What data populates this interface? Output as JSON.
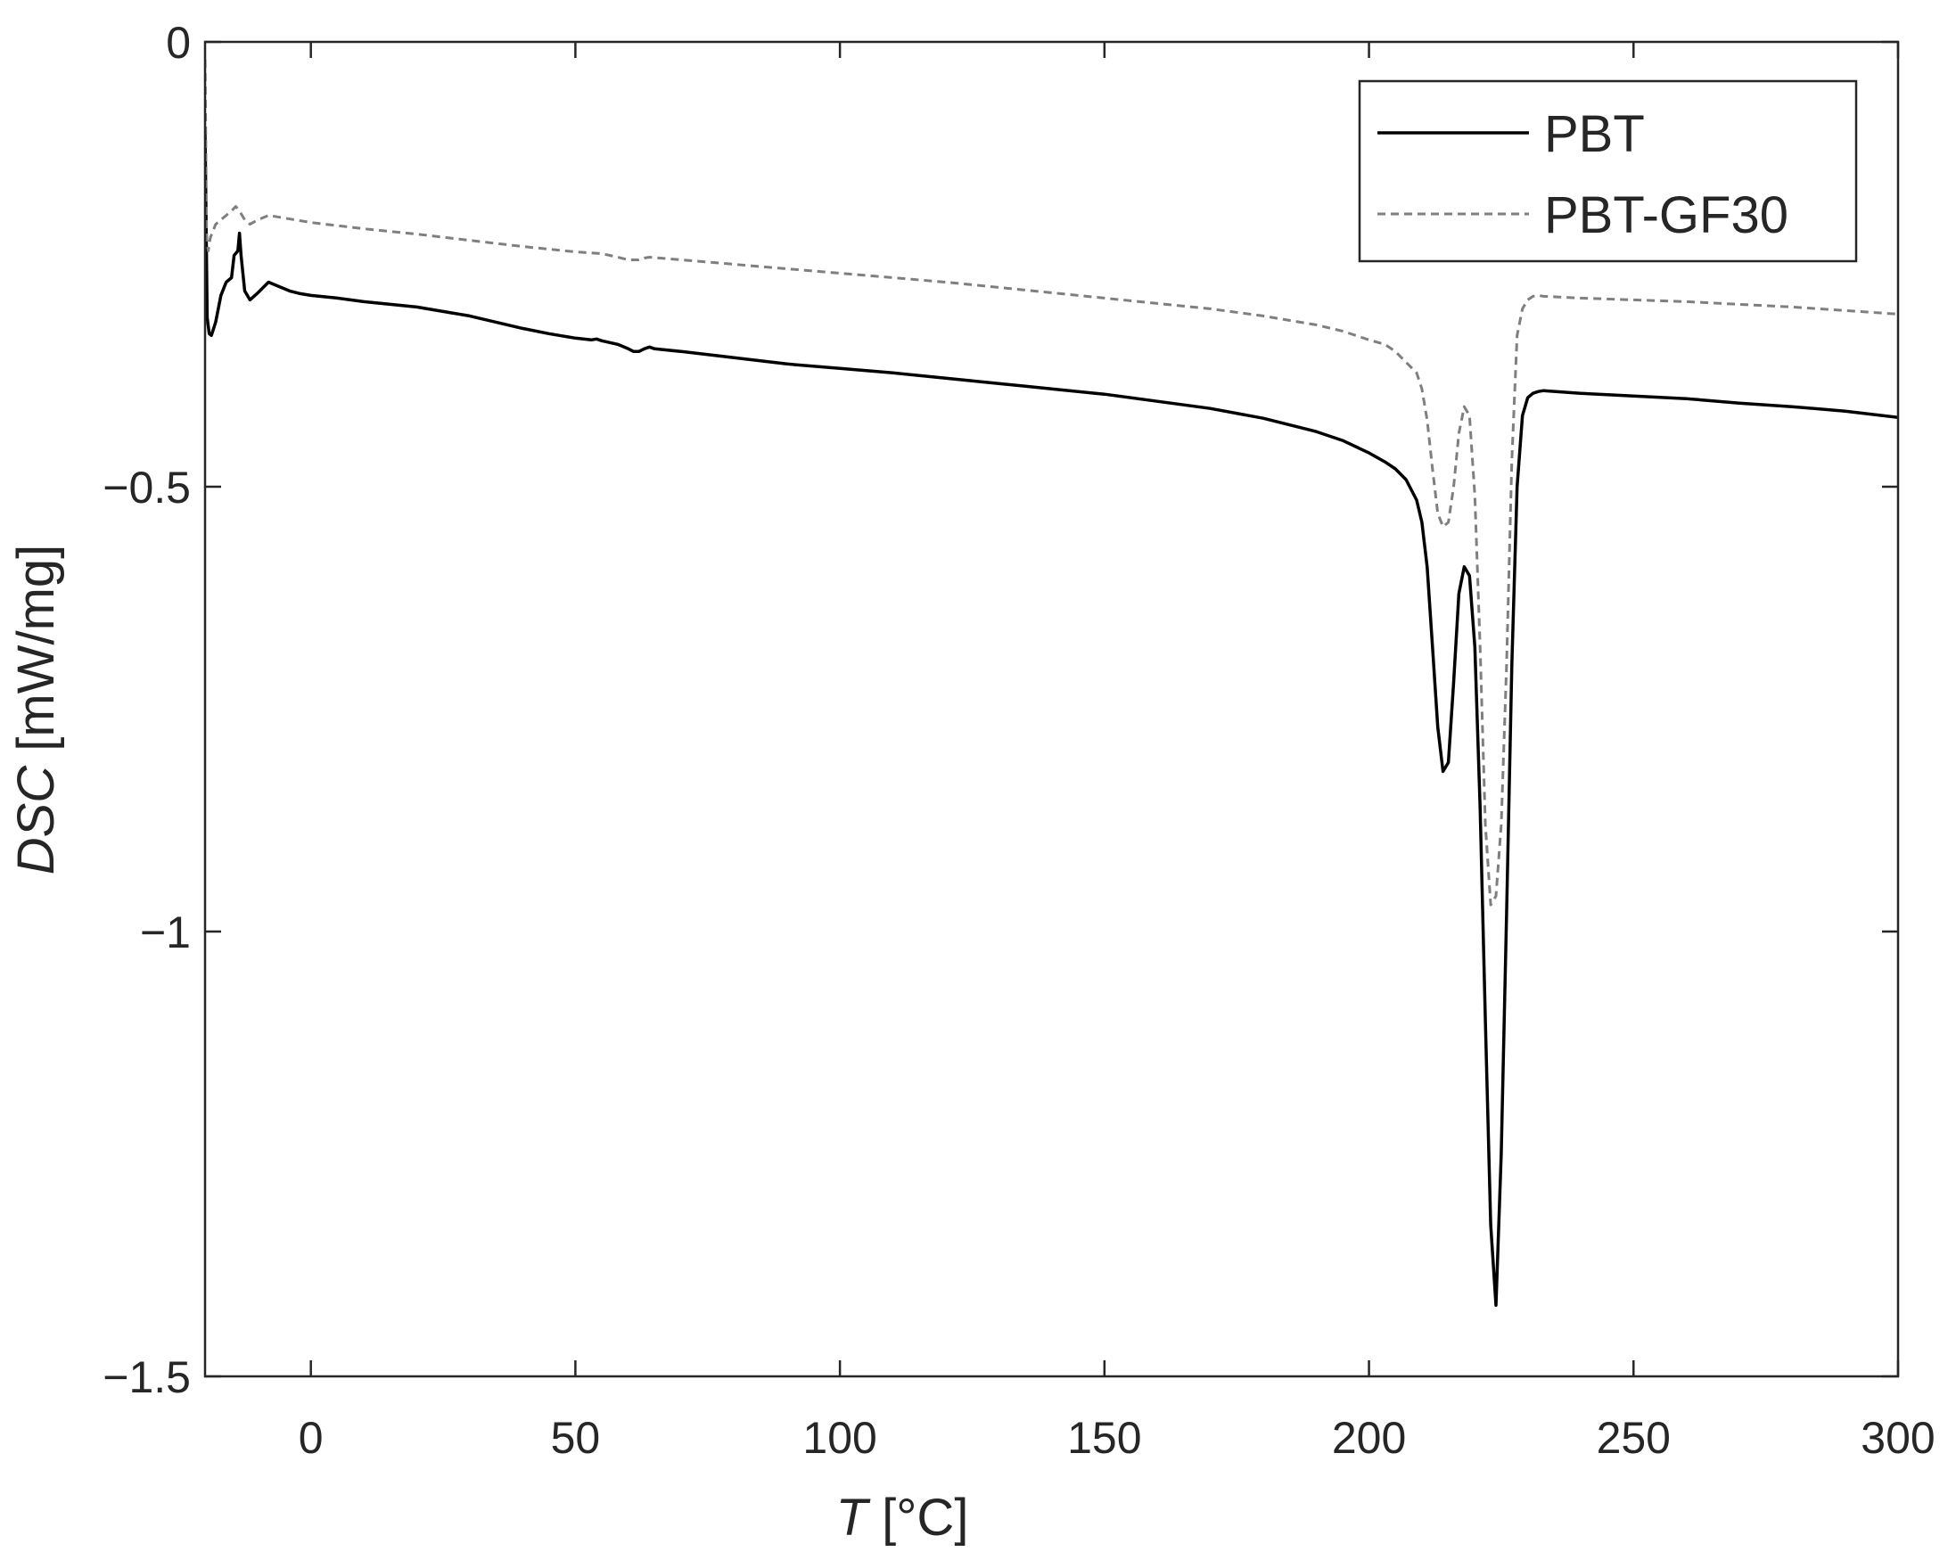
{
  "chart_data": {
    "type": "line",
    "xlabel": {
      "symbol": "T",
      "unit": "[°C]"
    },
    "ylabel": {
      "symbol": "DSC",
      "unit": "[mW/mg]"
    },
    "xlim": [
      -20,
      300
    ],
    "ylim": [
      -1.5,
      0
    ],
    "xticks": [
      0,
      50,
      100,
      150,
      200,
      250,
      300
    ],
    "xtick_labels": [
      "0",
      "50",
      "100",
      "150",
      "200",
      "250",
      "300"
    ],
    "yticks": [
      -1.5,
      -1,
      -0.5,
      0
    ],
    "ytick_labels": [
      "−1.5",
      "−1",
      "−0.5",
      "0"
    ],
    "grid": false,
    "legend_position": "top-right",
    "series": [
      {
        "name": "PBT",
        "style": "solid",
        "color": "#000000",
        "x": [
          -20,
          -19.6,
          -19.2,
          -18.8,
          -18.0,
          -17.0,
          -16.0,
          -15.0,
          -14.5,
          -13.8,
          -13.5,
          -13.2,
          -12.5,
          -11.5,
          -10.0,
          -8.0,
          -6.0,
          -4.0,
          -2.0,
          0,
          5,
          10,
          15,
          20,
          25,
          30,
          35,
          40,
          45,
          50,
          53,
          54,
          55,
          58,
          60,
          61,
          62,
          63,
          64,
          65,
          70,
          80,
          90,
          100,
          110,
          120,
          130,
          140,
          150,
          160,
          170,
          180,
          190,
          195,
          200,
          203,
          205,
          207,
          209,
          210,
          211,
          212,
          213,
          214,
          215,
          216,
          217,
          218,
          219,
          220,
          221,
          222,
          223,
          224,
          225,
          226,
          227,
          228,
          229,
          230,
          231,
          232,
          233,
          240,
          250,
          260,
          270,
          280,
          290,
          300
        ],
        "y": [
          -0.1,
          -0.31,
          -0.328,
          -0.33,
          -0.315,
          -0.285,
          -0.27,
          -0.265,
          -0.24,
          -0.235,
          -0.215,
          -0.24,
          -0.28,
          -0.29,
          -0.282,
          -0.27,
          -0.275,
          -0.28,
          -0.283,
          -0.285,
          -0.288,
          -0.292,
          -0.295,
          -0.298,
          -0.303,
          -0.308,
          -0.315,
          -0.322,
          -0.328,
          -0.333,
          -0.335,
          -0.334,
          -0.336,
          -0.34,
          -0.345,
          -0.348,
          -0.348,
          -0.345,
          -0.343,
          -0.345,
          -0.348,
          -0.355,
          -0.362,
          -0.367,
          -0.372,
          -0.378,
          -0.384,
          -0.39,
          -0.396,
          -0.404,
          -0.412,
          -0.423,
          -0.438,
          -0.448,
          -0.462,
          -0.472,
          -0.48,
          -0.492,
          -0.515,
          -0.54,
          -0.59,
          -0.68,
          -0.77,
          -0.82,
          -0.81,
          -0.72,
          -0.62,
          -0.59,
          -0.6,
          -0.68,
          -0.86,
          -1.1,
          -1.33,
          -1.42,
          -1.25,
          -0.98,
          -0.7,
          -0.5,
          -0.42,
          -0.4,
          -0.395,
          -0.393,
          -0.392,
          -0.395,
          -0.398,
          -0.401,
          -0.406,
          -0.41,
          -0.415,
          -0.422
        ]
      },
      {
        "name": "PBT-GF30",
        "style": "dashed",
        "color": "#7f7f7f",
        "x": [
          -20,
          -19.7,
          -19.4,
          -19.0,
          -18.0,
          -17.0,
          -16.0,
          -15.0,
          -14.2,
          -13.5,
          -12.5,
          -11.5,
          -10.0,
          -8.0,
          -5.0,
          0,
          10,
          20,
          30,
          40,
          50,
          55,
          58,
          60,
          62,
          63,
          64,
          66,
          70,
          80,
          90,
          100,
          110,
          120,
          130,
          140,
          150,
          160,
          170,
          180,
          190,
          195,
          200,
          203,
          205,
          207,
          209,
          210,
          211,
          212,
          213,
          214,
          215,
          216,
          217,
          218,
          219,
          220,
          221,
          222,
          223,
          224,
          225,
          226,
          227,
          228,
          229,
          230,
          231,
          232,
          233,
          240,
          250,
          260,
          270,
          280,
          290,
          300
        ],
        "y": [
          -0.02,
          -0.22,
          -0.235,
          -0.22,
          -0.205,
          -0.2,
          -0.195,
          -0.19,
          -0.185,
          -0.19,
          -0.2,
          -0.205,
          -0.2,
          -0.195,
          -0.198,
          -0.203,
          -0.21,
          -0.216,
          -0.223,
          -0.23,
          -0.236,
          -0.238,
          -0.242,
          -0.245,
          -0.245,
          -0.243,
          -0.242,
          -0.243,
          -0.245,
          -0.25,
          -0.255,
          -0.26,
          -0.265,
          -0.27,
          -0.276,
          -0.282,
          -0.288,
          -0.294,
          -0.3,
          -0.308,
          -0.318,
          -0.325,
          -0.335,
          -0.34,
          -0.348,
          -0.36,
          -0.372,
          -0.39,
          -0.425,
          -0.48,
          -0.53,
          -0.545,
          -0.54,
          -0.5,
          -0.44,
          -0.41,
          -0.42,
          -0.51,
          -0.68,
          -0.88,
          -0.97,
          -0.96,
          -0.88,
          -0.7,
          -0.47,
          -0.33,
          -0.3,
          -0.29,
          -0.286,
          -0.285,
          -0.286,
          -0.288,
          -0.29,
          -0.292,
          -0.295,
          -0.298,
          -0.302,
          -0.306
        ]
      }
    ]
  }
}
